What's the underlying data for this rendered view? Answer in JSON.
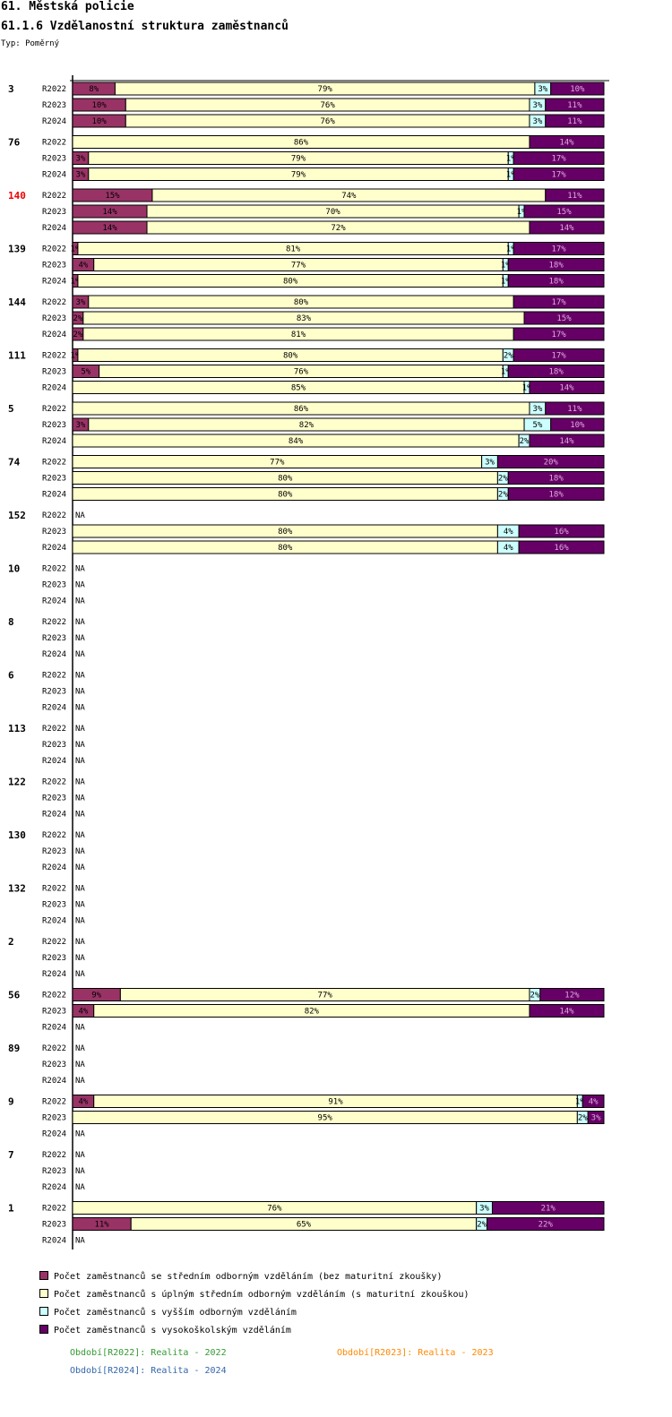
{
  "header": {
    "title": "61. Městská policie",
    "subtitle": "61.1.6 Vzdělanostní struktura zaměstnanců",
    "type_label": "Typ: Poměrný"
  },
  "legend": [
    {
      "label": "Počet zaměstnanců se středním odborným vzděláním (bez maturitní zkoušky)",
      "color": "#993366"
    },
    {
      "label": "Počet zaměstnanců s úplným středním odborným vzděláním (s maturitní zkouškou)",
      "color": "#ffffcc"
    },
    {
      "label": "Počet zaměstnanců s vyšším odborným vzděláním",
      "color": "#ccffff"
    },
    {
      "label": "Počet zaměstnanců s vysokoškolským vzděláním",
      "color": "#660066"
    }
  ],
  "periods": [
    {
      "label": "Období[R2022]: Realita - 2022",
      "color": "#339933"
    },
    {
      "label": "Období[R2023]: Realita - 2023",
      "color": "#ff8800"
    },
    {
      "label": "Období[R2024]: Realita - 2024",
      "color": "#3366aa"
    }
  ],
  "chart_data": {
    "type": "stacked-bar-horizontal-percent",
    "series": [
      "Počet zaměstnanců se středním odborným vzděláním (bez maturitní zkoušky)",
      "Počet zaměstnanců s úplným středním odborným vzděláním (s maturitní zkouškou)",
      "Počet zaměstnanců s vyšším odborným vzděláním",
      "Počet zaměstnanců s vysokoškolským vzděláním"
    ],
    "colors": [
      "#993366",
      "#ffffcc",
      "#ccffff",
      "#660066"
    ],
    "na_label": "NA",
    "xlim": [
      0,
      100
    ],
    "groups": [
      {
        "id": "3",
        "highlight": false,
        "rows": [
          {
            "label": "R2022",
            "values": [
              8,
              79,
              3,
              10
            ]
          },
          {
            "label": "R2023",
            "values": [
              10,
              76,
              3,
              11
            ]
          },
          {
            "label": "R2024",
            "values": [
              10,
              76,
              3,
              11
            ]
          }
        ]
      },
      {
        "id": "76",
        "highlight": false,
        "rows": [
          {
            "label": "R2022",
            "values": [
              0,
              86,
              0,
              14
            ]
          },
          {
            "label": "R2023",
            "values": [
              3,
              79,
              1,
              17
            ]
          },
          {
            "label": "R2024",
            "values": [
              3,
              79,
              1,
              17
            ]
          }
        ]
      },
      {
        "id": "140",
        "highlight": true,
        "rows": [
          {
            "label": "R2022",
            "values": [
              15,
              74,
              0,
              11
            ]
          },
          {
            "label": "R2023",
            "values": [
              14,
              70,
              1,
              15
            ]
          },
          {
            "label": "R2024",
            "values": [
              14,
              72,
              0,
              14
            ]
          }
        ]
      },
      {
        "id": "139",
        "highlight": false,
        "rows": [
          {
            "label": "R2022",
            "values": [
              1,
              81,
              1,
              17
            ]
          },
          {
            "label": "R2023",
            "values": [
              4,
              77,
              1,
              18
            ]
          },
          {
            "label": "R2024",
            "values": [
              1,
              80,
              1,
              18
            ]
          }
        ]
      },
      {
        "id": "144",
        "highlight": false,
        "rows": [
          {
            "label": "R2022",
            "values": [
              3,
              80,
              0,
              17
            ]
          },
          {
            "label": "R2023",
            "values": [
              2,
              83,
              0,
              15
            ]
          },
          {
            "label": "R2024",
            "values": [
              2,
              81,
              0,
              17
            ]
          }
        ]
      },
      {
        "id": "111",
        "highlight": false,
        "rows": [
          {
            "label": "R2022",
            "values": [
              1,
              80,
              2,
              17
            ]
          },
          {
            "label": "R2023",
            "values": [
              5,
              76,
              1,
              18
            ]
          },
          {
            "label": "R2024",
            "values": [
              0,
              85,
              1,
              14
            ]
          }
        ]
      },
      {
        "id": "5",
        "highlight": false,
        "rows": [
          {
            "label": "R2022",
            "values": [
              0,
              86,
              3,
              11
            ]
          },
          {
            "label": "R2023",
            "values": [
              3,
              82,
              5,
              10
            ]
          },
          {
            "label": "R2024",
            "values": [
              0,
              84,
              2,
              14
            ]
          }
        ]
      },
      {
        "id": "74",
        "highlight": false,
        "rows": [
          {
            "label": "R2022",
            "values": [
              0,
              77,
              3,
              20
            ]
          },
          {
            "label": "R2023",
            "values": [
              0,
              80,
              2,
              18
            ]
          },
          {
            "label": "R2024",
            "values": [
              0,
              80,
              2,
              18
            ]
          }
        ]
      },
      {
        "id": "152",
        "highlight": false,
        "rows": [
          {
            "label": "R2022",
            "values": null
          },
          {
            "label": "R2023",
            "values": [
              0,
              80,
              4,
              16
            ]
          },
          {
            "label": "R2024",
            "values": [
              0,
              80,
              4,
              16
            ]
          }
        ]
      },
      {
        "id": "10",
        "highlight": false,
        "rows": [
          {
            "label": "R2022",
            "values": null
          },
          {
            "label": "R2023",
            "values": null
          },
          {
            "label": "R2024",
            "values": null
          }
        ]
      },
      {
        "id": "8",
        "highlight": false,
        "rows": [
          {
            "label": "R2022",
            "values": null
          },
          {
            "label": "R2023",
            "values": null
          },
          {
            "label": "R2024",
            "values": null
          }
        ]
      },
      {
        "id": "6",
        "highlight": false,
        "rows": [
          {
            "label": "R2022",
            "values": null
          },
          {
            "label": "R2023",
            "values": null
          },
          {
            "label": "R2024",
            "values": null
          }
        ]
      },
      {
        "id": "113",
        "highlight": false,
        "rows": [
          {
            "label": "R2022",
            "values": null
          },
          {
            "label": "R2023",
            "values": null
          },
          {
            "label": "R2024",
            "values": null
          }
        ]
      },
      {
        "id": "122",
        "highlight": false,
        "rows": [
          {
            "label": "R2022",
            "values": null
          },
          {
            "label": "R2023",
            "values": null
          },
          {
            "label": "R2024",
            "values": null
          }
        ]
      },
      {
        "id": "130",
        "highlight": false,
        "rows": [
          {
            "label": "R2022",
            "values": null
          },
          {
            "label": "R2023",
            "values": null
          },
          {
            "label": "R2024",
            "values": null
          }
        ]
      },
      {
        "id": "132",
        "highlight": false,
        "rows": [
          {
            "label": "R2022",
            "values": null
          },
          {
            "label": "R2023",
            "values": null
          },
          {
            "label": "R2024",
            "values": null
          }
        ]
      },
      {
        "id": "2",
        "highlight": false,
        "rows": [
          {
            "label": "R2022",
            "values": null
          },
          {
            "label": "R2023",
            "values": null
          },
          {
            "label": "R2024",
            "values": null
          }
        ]
      },
      {
        "id": "56",
        "highlight": false,
        "rows": [
          {
            "label": "R2022",
            "values": [
              9,
              77,
              2,
              12
            ]
          },
          {
            "label": "R2023",
            "values": [
              4,
              82,
              0,
              14
            ]
          },
          {
            "label": "R2024",
            "values": null
          }
        ]
      },
      {
        "id": "89",
        "highlight": false,
        "rows": [
          {
            "label": "R2022",
            "values": null
          },
          {
            "label": "R2023",
            "values": null
          },
          {
            "label": "R2024",
            "values": null
          }
        ]
      },
      {
        "id": "9",
        "highlight": false,
        "rows": [
          {
            "label": "R2022",
            "values": [
              4,
              91,
              1,
              4
            ]
          },
          {
            "label": "R2023",
            "values": [
              0,
              95,
              2,
              3
            ]
          },
          {
            "label": "R2024",
            "values": null
          }
        ]
      },
      {
        "id": "7",
        "highlight": false,
        "rows": [
          {
            "label": "R2022",
            "values": null
          },
          {
            "label": "R2023",
            "values": null
          },
          {
            "label": "R2024",
            "values": null
          }
        ]
      },
      {
        "id": "1",
        "highlight": false,
        "rows": [
          {
            "label": "R2022",
            "values": [
              0,
              76,
              3,
              21
            ]
          },
          {
            "label": "R2023",
            "values": [
              11,
              65,
              2,
              22
            ]
          },
          {
            "label": "R2024",
            "values": null
          }
        ]
      }
    ]
  }
}
